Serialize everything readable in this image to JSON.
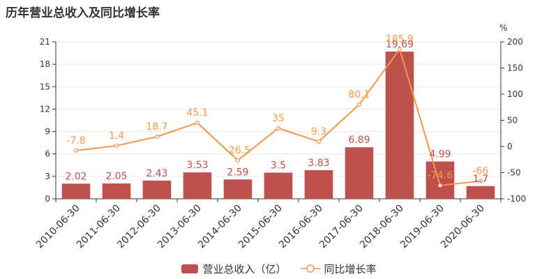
{
  "title": "历年营业总收入及同比增长率",
  "legend": {
    "bar_label": "营业总收入（亿）",
    "line_label": "同比增长率"
  },
  "colors": {
    "bar": "#c0504d",
    "line": "#f79646",
    "axis": "#333333",
    "grid": "#e6e6e6"
  },
  "chart_data": {
    "type": "bar",
    "categories": [
      "2010-06-30",
      "2011-06-30",
      "2012-06-30",
      "2013-06-30",
      "2014-06-30",
      "2015-06-30",
      "2016-06-30",
      "2017-06-30",
      "2018-06-30",
      "2019-06-30",
      "2020-06-30"
    ],
    "series": [
      {
        "name": "营业总收入（亿）",
        "type": "bar",
        "axis": "left",
        "values": [
          2.02,
          2.05,
          2.43,
          3.53,
          2.59,
          3.5,
          3.83,
          6.89,
          19.69,
          4.99,
          1.7
        ]
      },
      {
        "name": "同比增长率",
        "type": "line",
        "axis": "right",
        "values": [
          -7.8,
          1.4,
          18.7,
          45.1,
          -26.5,
          35,
          9.3,
          80.1,
          185.9,
          -74.6,
          -66
        ]
      }
    ],
    "y_left": {
      "min": 0,
      "max": 21,
      "ticks": [
        0,
        3,
        6,
        9,
        12,
        15,
        18,
        21
      ]
    },
    "y_right": {
      "min": -100,
      "max": 200,
      "ticks": [
        -100,
        -50,
        0,
        50,
        100,
        150,
        200
      ],
      "unit": "%"
    },
    "legend_position": "bottom",
    "grid": true
  }
}
